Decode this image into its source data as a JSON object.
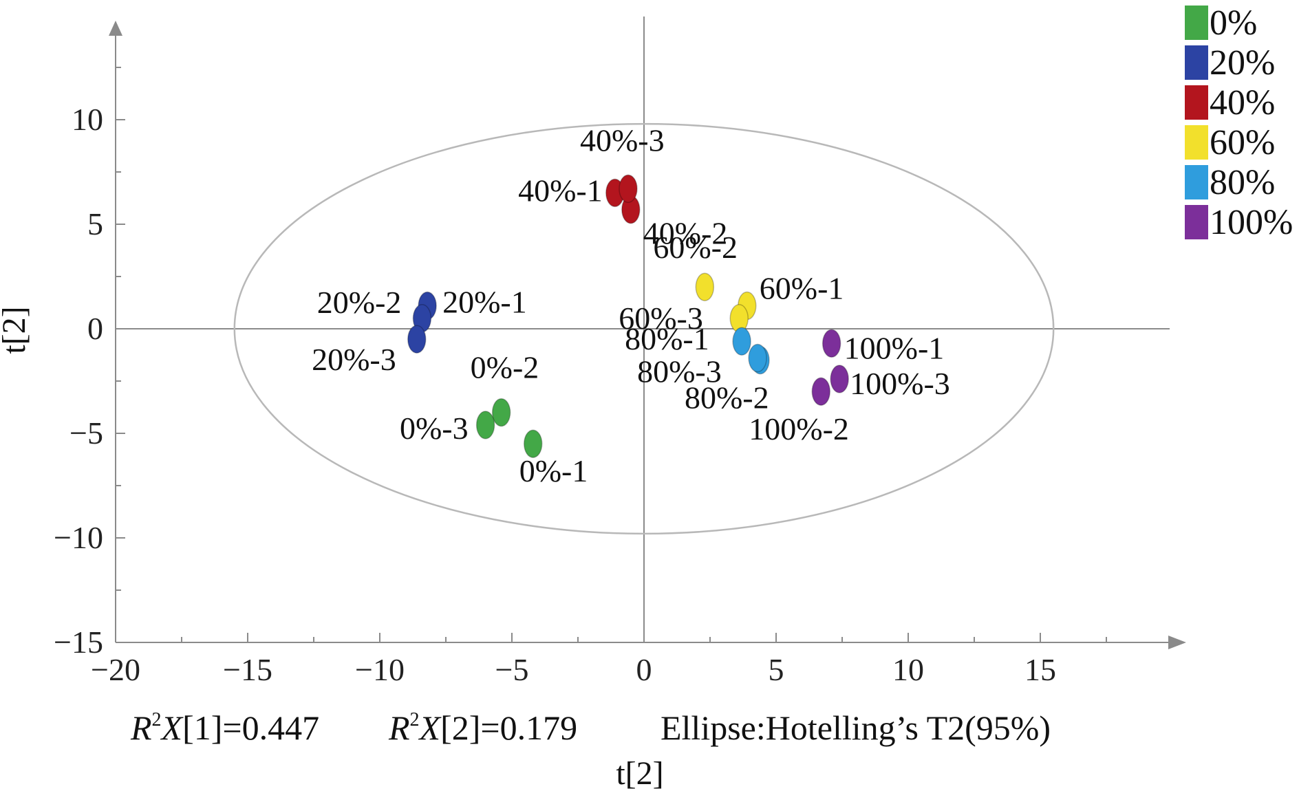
{
  "chart_data": {
    "type": "scatter",
    "xlabel": "t[2]",
    "ylabel": "t[2]",
    "xlim": [
      -20,
      20
    ],
    "ylim": [
      -15,
      15
    ],
    "xticks": [
      "−20",
      "−15",
      "−10",
      "−5",
      "0",
      "5",
      "10",
      "15"
    ],
    "yticks": [
      "10",
      "5",
      "0",
      "−5",
      "−10",
      "−15"
    ],
    "ellipse": {
      "cx": 0,
      "cy": 0,
      "rx": 15.5,
      "ry": 9.8
    },
    "series": [
      {
        "name": "0%",
        "color": "#43a847",
        "points": [
          {
            "label": "0%-1",
            "x": -4.2,
            "y": -5.5
          },
          {
            "label": "0%-2",
            "x": -5.4,
            "y": -4.0
          },
          {
            "label": "0%-3",
            "x": -6.0,
            "y": -4.6
          }
        ]
      },
      {
        "name": "20%",
        "color": "#2c43a3",
        "points": [
          {
            "label": "20%-1",
            "x": -8.2,
            "y": 1.1
          },
          {
            "label": "20%-2",
            "x": -8.4,
            "y": 0.5
          },
          {
            "label": "20%-3",
            "x": -8.6,
            "y": -0.5
          }
        ]
      },
      {
        "name": "40%",
        "color": "#b3151e",
        "points": [
          {
            "label": "40%-1",
            "x": -1.1,
            "y": 6.5
          },
          {
            "label": "40%-2",
            "x": -0.5,
            "y": 5.7
          },
          {
            "label": "40%-3",
            "x": -0.6,
            "y": 6.7
          }
        ]
      },
      {
        "name": "60%",
        "color": "#f2e02c",
        "points": [
          {
            "label": "60%-1",
            "x": 3.9,
            "y": 1.1
          },
          {
            "label": "60%-2",
            "x": 2.3,
            "y": 2.0
          },
          {
            "label": "60%-3",
            "x": 3.6,
            "y": 0.5
          }
        ]
      },
      {
        "name": "80%",
        "color": "#2f9ddd",
        "points": [
          {
            "label": "80%-1",
            "x": 3.7,
            "y": -0.6
          },
          {
            "label": "80%-2",
            "x": 4.4,
            "y": -1.5
          },
          {
            "label": "80%-3",
            "x": 4.3,
            "y": -1.4
          }
        ]
      },
      {
        "name": "100%",
        "color": "#7c2f9a",
        "points": [
          {
            "label": "100%-1",
            "x": 7.1,
            "y": -0.7
          },
          {
            "label": "100%-2",
            "x": 6.7,
            "y": -3.0
          },
          {
            "label": "100%-3",
            "x": 7.4,
            "y": -2.4
          }
        ]
      }
    ],
    "legend": [
      "0%",
      "20%",
      "40%",
      "60%",
      "80%",
      "100%"
    ],
    "annotations": {
      "r2x1": "X[1]=0.447",
      "r2x2": "X[2]=0.179",
      "ellipse": "Ellipse:Hotelling’s T2(95%)"
    }
  }
}
